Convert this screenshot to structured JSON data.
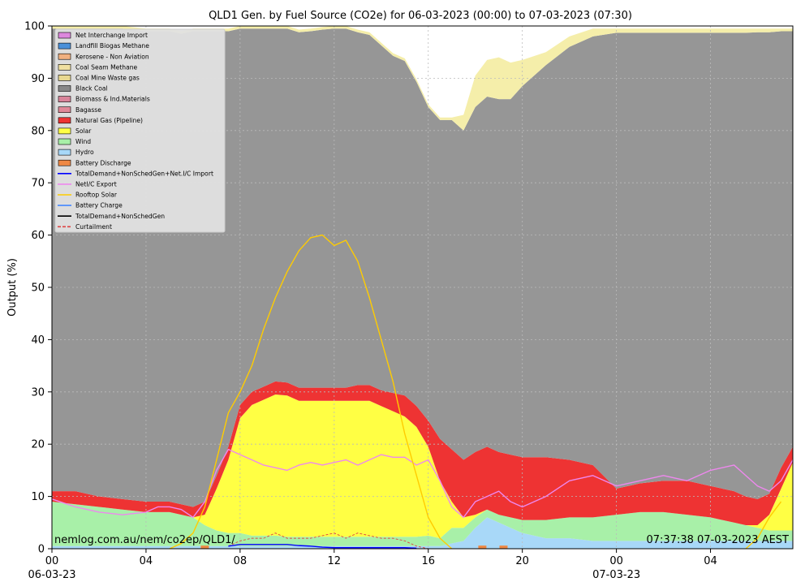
{
  "chart_data": {
    "type": "area",
    "title": "QLD1 Gen. by Fuel Source (CO2e) for 06-03-2023 (00:00) to 07-03-2023 (07:30)",
    "ylabel": "Output (%)",
    "xlabel": "",
    "ylim": [
      0,
      100
    ],
    "xlim_hours": [
      0,
      31.5
    ],
    "grid": true,
    "legend_position": "top-left",
    "x_ticks": [
      {
        "hour": 0,
        "label": "00"
      },
      {
        "hour": 4,
        "label": "04"
      },
      {
        "hour": 8,
        "label": "08"
      },
      {
        "hour": 12,
        "label": "12"
      },
      {
        "hour": 16,
        "label": "16"
      },
      {
        "hour": 20,
        "label": "20"
      },
      {
        "hour": 24,
        "label": "00"
      },
      {
        "hour": 28,
        "label": "04"
      }
    ],
    "date_labels": [
      {
        "hour": 0,
        "label": "06-03-23"
      },
      {
        "hour": 24,
        "label": "07-03-23"
      }
    ],
    "y_ticks": [
      0,
      10,
      20,
      30,
      40,
      50,
      60,
      70,
      80,
      90,
      100
    ],
    "legend": [
      {
        "label": "Net Interchange Import",
        "kind": "patch",
        "color": "#dd88dd"
      },
      {
        "label": "Landfill Biogas Methane",
        "kind": "patch",
        "color": "#4a90d9"
      },
      {
        "label": "Kerosene - Non Aviation",
        "kind": "patch",
        "color": "#f0b080"
      },
      {
        "label": "Coal Seam Methane",
        "kind": "patch",
        "color": "#f0e0a0"
      },
      {
        "label": "Coal Mine Waste gas",
        "kind": "patch",
        "color": "#e8d890"
      },
      {
        "label": "Black Coal",
        "kind": "patch",
        "color": "#888888"
      },
      {
        "label": "Biomass & Ind.Materials",
        "kind": "patch",
        "color": "#d9849a"
      },
      {
        "label": "Bagasse",
        "kind": "patch",
        "color": "#e08898"
      },
      {
        "label": "Natural Gas (Pipeline)",
        "kind": "patch",
        "color": "#ee3333"
      },
      {
        "label": "Solar",
        "kind": "patch",
        "color": "#ffff44"
      },
      {
        "label": "Wind",
        "kind": "patch",
        "color": "#a8f0a8"
      },
      {
        "label": "Hydro",
        "kind": "patch",
        "color": "#a8d8f8"
      },
      {
        "label": "Battery Discharge",
        "kind": "patch",
        "color": "#ee8844"
      },
      {
        "label": "TotalDemand+NonSchedGen+Net.I/C Import",
        "kind": "line",
        "color": "#0000ff",
        "dash": ""
      },
      {
        "label": "NetI/C Export",
        "kind": "line",
        "color": "#ee88ee",
        "dash": ""
      },
      {
        "label": "Rooftop Solar",
        "kind": "line",
        "color": "#ffcc00",
        "dash": ""
      },
      {
        "label": "Battery Charge",
        "kind": "line",
        "color": "#4488ff",
        "dash": ""
      },
      {
        "label": "TotalDemand+NonSchedGen",
        "kind": "line",
        "color": "#000000",
        "dash": ""
      },
      {
        "label": "Curtailment",
        "kind": "line",
        "color": "#dd4444",
        "dash": "4,2"
      }
    ],
    "stack_hours": [
      0,
      1,
      2,
      3,
      4,
      5,
      5.5,
      6,
      6.5,
      7,
      7.5,
      8,
      8.5,
      9,
      9.5,
      10,
      10.5,
      11,
      11.5,
      12,
      12.5,
      13,
      13.5,
      14,
      14.5,
      15,
      15.5,
      16,
      16.5,
      17,
      17.5,
      18,
      18.5,
      19,
      19.5,
      20,
      21,
      22,
      23,
      24,
      25,
      26,
      27,
      28,
      29,
      29.5,
      30,
      30.5,
      31,
      31.5
    ],
    "series": [
      {
        "name": "Hydro",
        "color": "#a8d8f8",
        "values": [
          0.5,
          0.5,
          0.5,
          0.5,
          0.5,
          0.5,
          0.5,
          0.5,
          0.5,
          0.5,
          0.5,
          0.5,
          0.5,
          0.5,
          0.5,
          0.5,
          0.5,
          0.5,
          0.5,
          0.5,
          0.5,
          0.5,
          0.5,
          0.5,
          0.5,
          0.5,
          0.5,
          0.5,
          0.5,
          1,
          1.5,
          4,
          6,
          5,
          4,
          3,
          2,
          2,
          1.5,
          1.5,
          1.5,
          1.5,
          1.5,
          1.5,
          1.5,
          1.5,
          1.5,
          1.5,
          1.5,
          1.5
        ]
      },
      {
        "name": "Wind",
        "color": "#a8f0a8",
        "values": [
          8.5,
          8,
          7.5,
          7,
          6.5,
          6.5,
          6,
          5.5,
          4,
          3,
          2.5,
          2.5,
          2,
          2,
          2,
          1.8,
          1.8,
          1.8,
          1.8,
          1.8,
          1.8,
          1.8,
          1.8,
          1.8,
          1.8,
          1.8,
          1.8,
          2,
          1.5,
          3,
          2.5,
          2,
          1.5,
          1.5,
          2,
          2.5,
          3.5,
          4,
          4.5,
          5,
          5.5,
          5.5,
          5,
          4.5,
          3.5,
          3,
          2.5,
          2,
          2,
          2
        ]
      },
      {
        "name": "Solar",
        "color": "#ffff44",
        "values": [
          0,
          0,
          0,
          0,
          0,
          0,
          0,
          0,
          2,
          8,
          14,
          22,
          25,
          26,
          27,
          27,
          26,
          26,
          26,
          26,
          26,
          26,
          26,
          25,
          24,
          23,
          21,
          17,
          11,
          5,
          2,
          0.5,
          0,
          0,
          0,
          0,
          0,
          0,
          0,
          0,
          0,
          0,
          0,
          0,
          0,
          0,
          0.5,
          3,
          8,
          13
        ]
      },
      {
        "name": "Natural Gas (Pipeline)",
        "color": "#ee3333",
        "values": [
          2,
          2.5,
          2,
          2,
          2,
          2,
          2,
          2,
          2.5,
          2.5,
          2.5,
          2.5,
          2.5,
          2.5,
          2.5,
          2.5,
          2.5,
          2.5,
          2.5,
          2.5,
          2.5,
          3,
          3,
          3,
          3.5,
          4,
          4,
          5,
          8,
          10,
          11,
          12,
          12,
          12,
          12,
          12,
          12,
          11,
          10,
          5,
          5.5,
          6,
          6.5,
          6,
          6,
          5.5,
          5,
          4,
          4,
          3
        ]
      },
      {
        "name": "Black Coal",
        "color": "#969696",
        "values": [
          88.5,
          88.5,
          89.5,
          90,
          90,
          90,
          90,
          91,
          90,
          85,
          79.5,
          72,
          69.5,
          68.5,
          67.5,
          67.7,
          68,
          68.2,
          68.5,
          68.7,
          68.7,
          67.5,
          67,
          66,
          64.5,
          64,
          62,
          60,
          61,
          63,
          63,
          66,
          67,
          67.5,
          68,
          71,
          75,
          79,
          82,
          87.2,
          86.2,
          85.7,
          85.7,
          86.7,
          87.7,
          88.7,
          89.3,
          88.3,
          83.5,
          79.5
        ]
      },
      {
        "name": "Coal Mine Waste gas",
        "color": "#f5eeaa",
        "values": [
          0.5,
          0.5,
          0.5,
          0.5,
          0.5,
          0.5,
          0.5,
          0.5,
          0.5,
          0.5,
          0.5,
          0.5,
          0.5,
          0.5,
          0.5,
          0.5,
          0.5,
          0.5,
          0.5,
          0.5,
          0.5,
          0.5,
          0.5,
          0.5,
          0.5,
          0.5,
          0.5,
          0.5,
          0.5,
          0.5,
          3,
          6,
          7,
          8,
          7,
          5,
          2.5,
          2,
          1.5,
          0.8,
          0.8,
          0.8,
          0.8,
          0.8,
          0.8,
          0.8,
          0.7,
          0.7,
          0.5,
          0.5
        ]
      }
    ],
    "line_hours": [
      0,
      1,
      2,
      3,
      4,
      4.5,
      5,
      5.5,
      6,
      6.5,
      7,
      7.5,
      8,
      8.5,
      9,
      9.5,
      10,
      10.5,
      11,
      11.5,
      12,
      12.5,
      13,
      13.5,
      14,
      14.5,
      15,
      15.5,
      16,
      16.5,
      17,
      17.5,
      18,
      18.5,
      19,
      19.5,
      20,
      21,
      22,
      23,
      24,
      25,
      26,
      27,
      28,
      29,
      29.5,
      30,
      30.5,
      31,
      31.5
    ],
    "lines": [
      {
        "name": "NetI/C Export",
        "color": "#ee88ee",
        "values": [
          9.5,
          8,
          7,
          6.5,
          7,
          8,
          8,
          7.5,
          6,
          9,
          15,
          19,
          18,
          17,
          16,
          15.5,
          15,
          16,
          16.5,
          16,
          16.5,
          17,
          16,
          17,
          18,
          17.5,
          17.5,
          16,
          17,
          13,
          8,
          6,
          9,
          10,
          11,
          9,
          8,
          10,
          13,
          14,
          12,
          13,
          14,
          13,
          15,
          16,
          14,
          12,
          11,
          13,
          17
        ]
      },
      {
        "name": "Rooftop Solar",
        "color": "#ffcc00",
        "values": [
          null,
          null,
          null,
          null,
          null,
          null,
          0,
          1,
          3,
          8,
          17,
          26,
          30,
          35,
          42,
          48,
          53,
          57,
          59.5,
          60,
          58,
          59,
          55,
          48,
          40,
          32,
          22,
          14,
          6,
          2,
          0,
          null,
          null,
          null,
          null,
          null,
          null,
          null,
          null,
          null,
          null,
          null,
          null,
          null,
          null,
          null,
          0,
          2,
          6,
          9,
          null
        ]
      },
      {
        "name": "Curtailment",
        "color": "#dd4444",
        "values": [
          null,
          null,
          null,
          null,
          null,
          null,
          null,
          null,
          null,
          null,
          null,
          0.5,
          1.5,
          2,
          2,
          3,
          2,
          2,
          2,
          2.5,
          3,
          2,
          3,
          2.5,
          2,
          2,
          1.5,
          0.5,
          0,
          null,
          null,
          null,
          null,
          null,
          null,
          null,
          null,
          null,
          null,
          null,
          null,
          null,
          null,
          null,
          null,
          null,
          null,
          null,
          null,
          null,
          null
        ]
      },
      {
        "name": "TotalDemand+NonSchedGen+Net.I/C Import",
        "color": "#0000ff",
        "values": [
          null,
          null,
          null,
          null,
          null,
          null,
          null,
          null,
          null,
          null,
          null,
          0.5,
          0.8,
          0.8,
          0.8,
          0.8,
          0.8,
          0.6,
          0.5,
          0.3,
          0.2,
          0.2,
          0.2,
          0.2,
          0.2,
          0.2,
          0.2,
          0.1,
          null,
          null,
          null,
          null,
          null,
          null,
          null,
          null,
          null,
          null,
          null,
          null,
          null,
          null,
          null,
          null,
          null,
          null,
          null,
          null,
          null,
          null,
          null
        ]
      }
    ],
    "battery_discharge_marks": [
      6.5,
      18.3,
      19.2
    ],
    "annotations": {
      "source": "nemlog.com.au/nem/co2ep/QLD1/",
      "timestamp": "07:37:38 07-03-2023 AEST"
    }
  }
}
